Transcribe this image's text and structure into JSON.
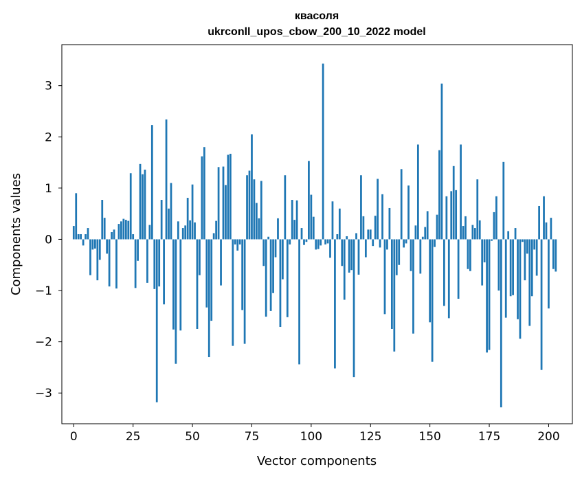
{
  "chart_data": {
    "type": "bar",
    "title": "квасоля",
    "subtitle": "ukrconll_upos_cbow_200_10_2022 model",
    "xlabel": "Vector components",
    "ylabel": "Components values",
    "xlim": [
      -5,
      210
    ],
    "ylim": [
      -3.6,
      3.8
    ],
    "xticks": [
      0,
      25,
      50,
      75,
      100,
      125,
      150,
      175,
      200
    ],
    "yticks": [
      -3,
      -2,
      -1,
      0,
      1,
      2,
      3
    ],
    "xtick_labels": [
      "0",
      "25",
      "50",
      "75",
      "100",
      "125",
      "150",
      "175",
      "200"
    ],
    "ytick_labels": [
      "−3",
      "−2",
      "−1",
      "0",
      "1",
      "2",
      "3"
    ],
    "grid": false,
    "bar_color": "#1f77b4",
    "series": [
      {
        "x_start": 0,
        "values": [
          0.26,
          0.9,
          0.1,
          0.1,
          -0.12,
          0.1,
          0.22,
          -0.7,
          -0.2,
          -0.18,
          -0.8,
          -0.4,
          0.77,
          0.42,
          -0.28,
          -0.92,
          0.14,
          0.19,
          -0.96,
          0.3,
          0.35,
          0.4,
          0.38,
          0.36,
          1.29,
          0.1,
          -0.95,
          -0.42,
          1.47,
          1.27,
          1.36,
          -0.85,
          0.28,
          2.23,
          -0.97,
          -3.18,
          -0.92,
          0.77,
          -1.27,
          2.34,
          0.6,
          1.1,
          -1.76,
          -2.43,
          0.35,
          -1.78,
          0.22,
          0.27,
          0.81,
          0.37,
          1.07,
          0.33,
          -1.75,
          -0.7,
          1.62,
          1.8,
          -1.33,
          -2.3,
          -1.59,
          0.12,
          0.36,
          1.41,
          -0.9,
          1.42,
          1.06,
          1.65,
          1.67,
          -2.08,
          -0.1,
          -0.22,
          -0.1,
          -1.38,
          -2.04,
          1.25,
          1.34,
          2.05,
          1.17,
          0.71,
          0.41,
          1.14,
          -0.52,
          -1.51,
          0.05,
          -1.4,
          -1.05,
          -0.35,
          0.41,
          -1.71,
          -0.78,
          1.25,
          -1.52,
          -0.1,
          0.77,
          0.38,
          0.76,
          -2.44,
          0.22,
          -0.11,
          -0.05,
          1.53,
          0.87,
          0.44,
          -0.2,
          -0.19,
          -0.12,
          3.43,
          -0.1,
          -0.08,
          -0.36,
          0.74,
          -2.52,
          0.1,
          0.6,
          -0.52,
          -1.18,
          0.06,
          -0.65,
          -0.6,
          -2.69,
          0.12,
          -0.69,
          1.25,
          0.45,
          -0.35,
          0.19,
          0.19,
          -0.13,
          0.46,
          1.18,
          -0.16,
          0.88,
          -1.46,
          -0.2,
          0.61,
          -1.75,
          -2.19,
          -0.7,
          -0.5,
          1.37,
          -0.16,
          -0.08,
          1.05,
          -0.62,
          -1.84,
          0.27,
          1.85,
          -0.67,
          0.05,
          0.24,
          0.55,
          -1.62,
          -2.39,
          -0.15,
          0.48,
          1.74,
          3.04,
          -1.3,
          0.84,
          -1.54,
          0.94,
          1.43,
          0.96,
          -1.16,
          1.85,
          0.26,
          0.45,
          -0.58,
          -0.62,
          0.28,
          0.22,
          1.17,
          0.37,
          -0.9,
          -0.45,
          -2.21,
          -2.16,
          -0.03,
          0.53,
          0.84,
          -1.0,
          -3.28,
          1.51,
          -1.53,
          0.16,
          -1.11,
          -1.09,
          0.22,
          -1.56,
          -1.94,
          -0.05,
          -0.8,
          -0.28,
          -1.69,
          -1.11,
          -0.2,
          -0.71,
          0.65,
          -2.55,
          0.84,
          0.33,
          -1.35,
          0.42,
          -0.58,
          -0.63
        ]
      }
    ]
  }
}
